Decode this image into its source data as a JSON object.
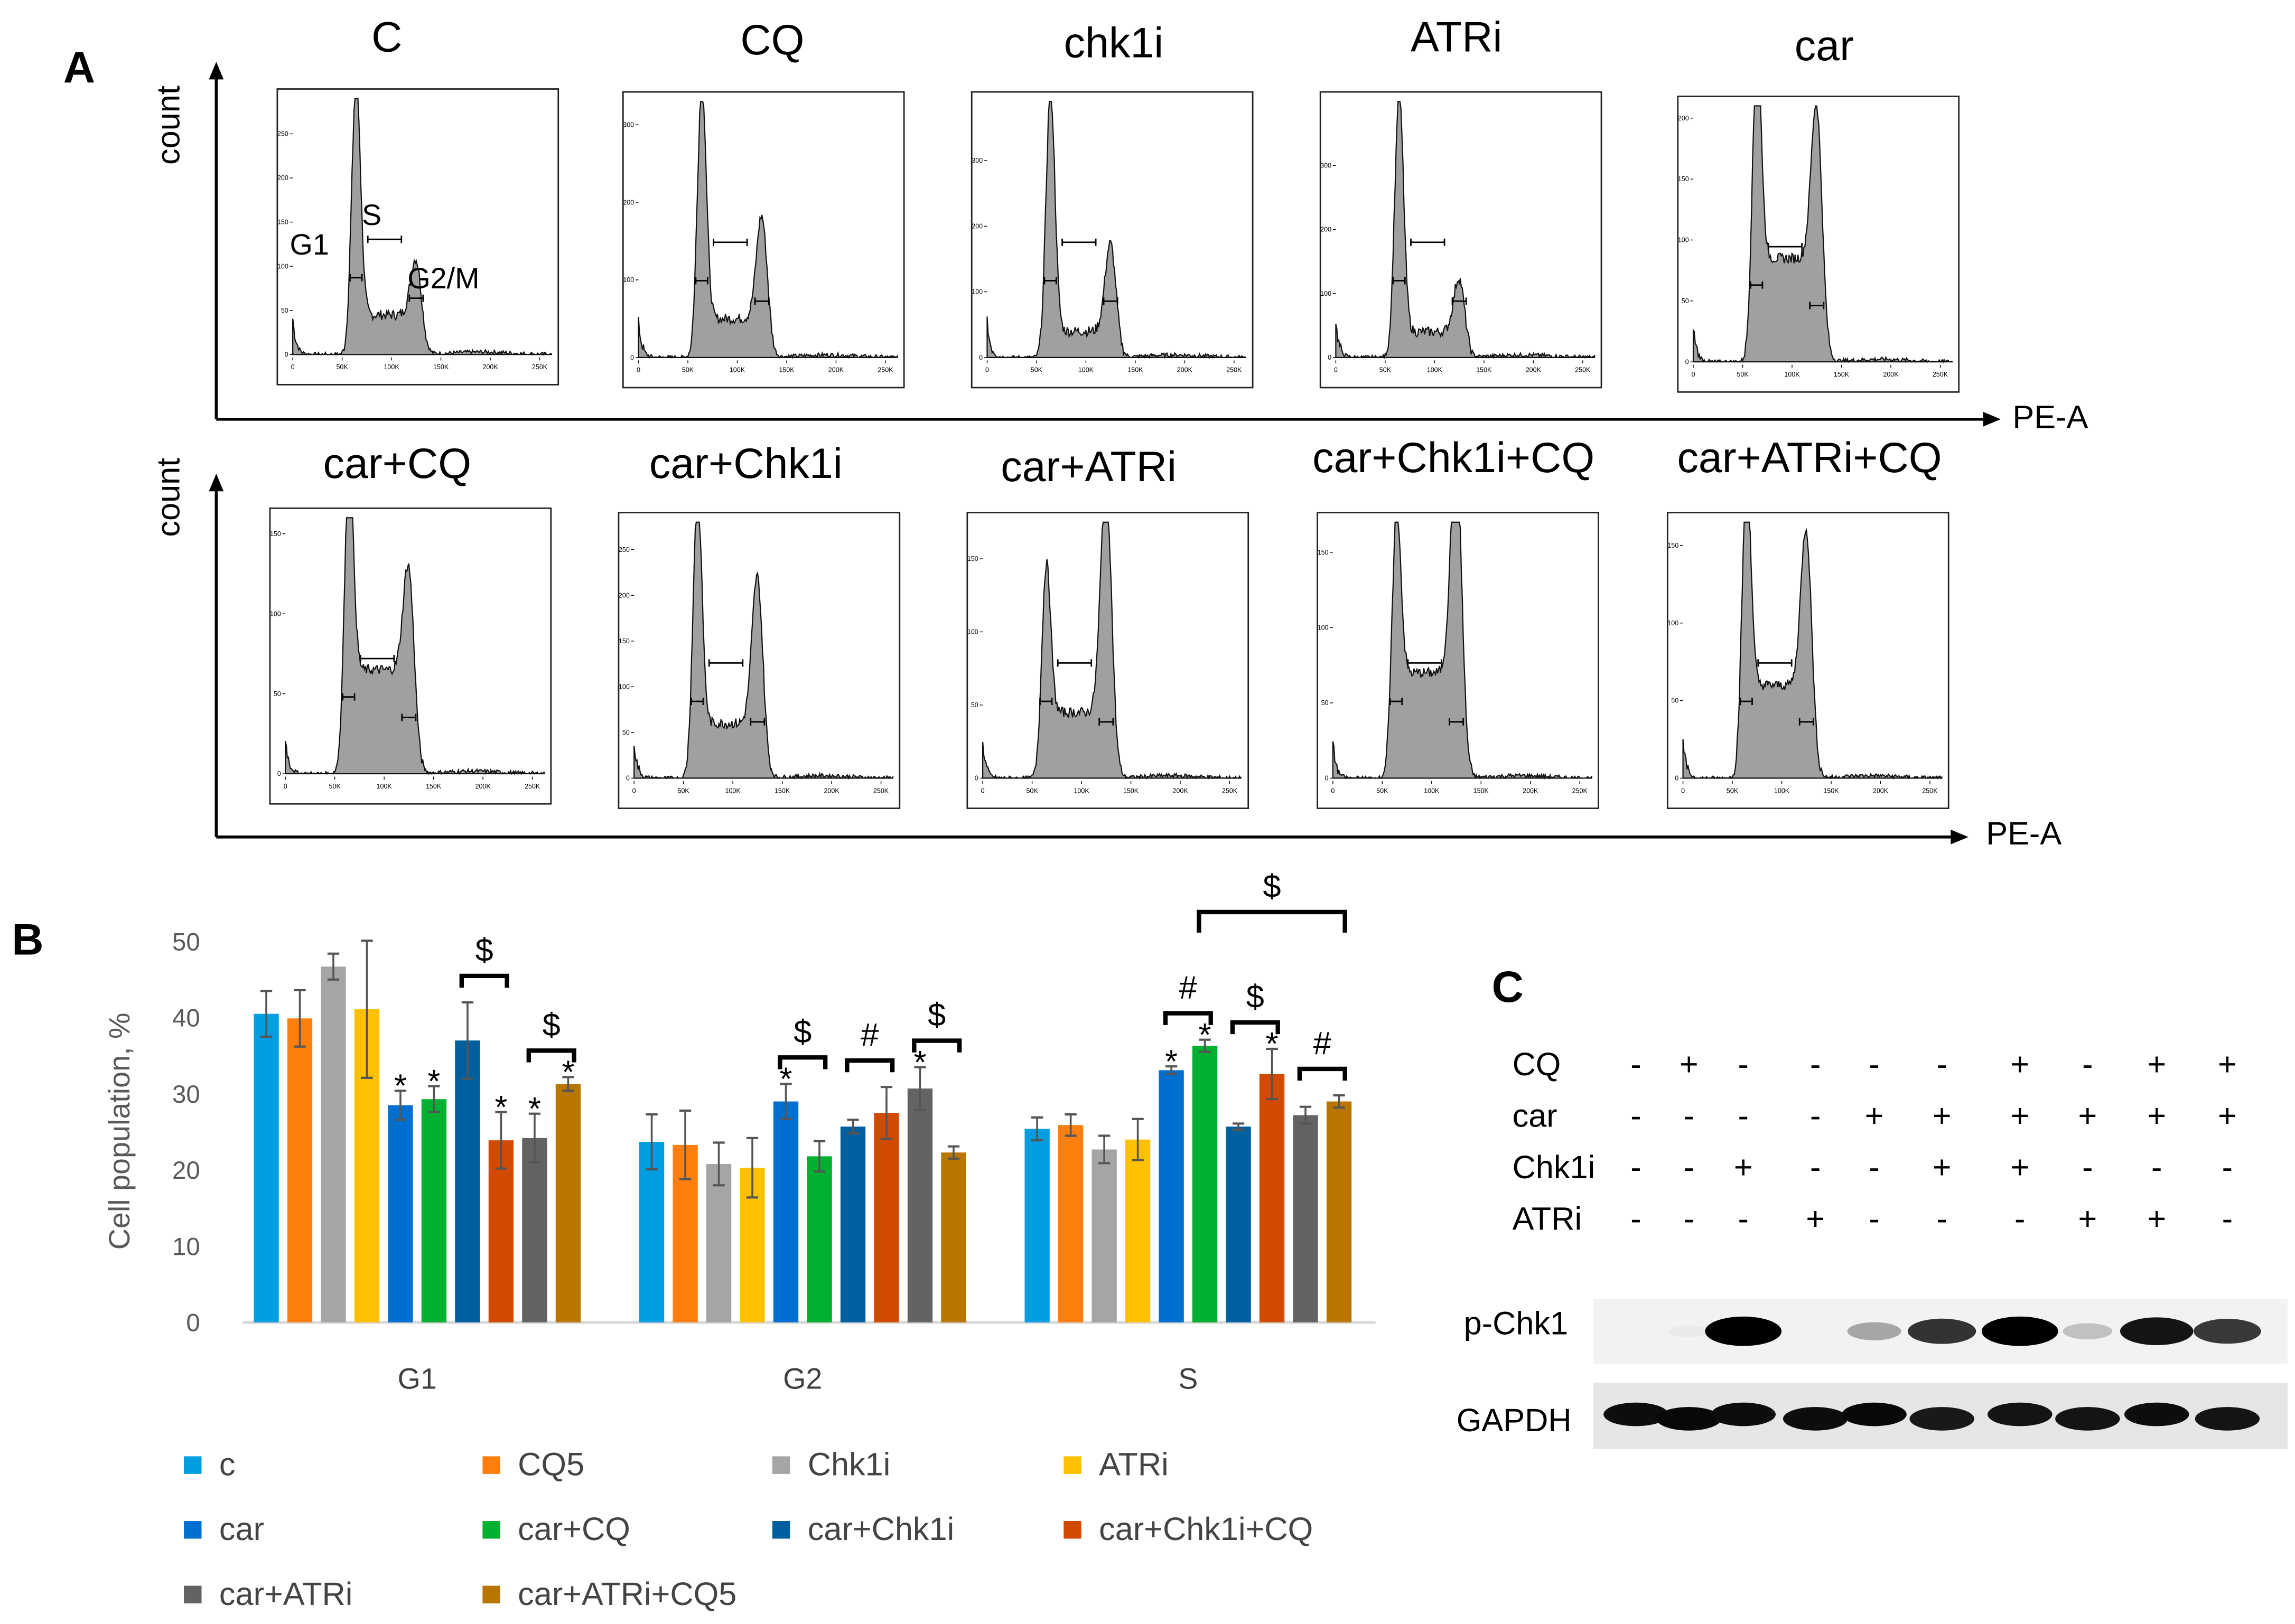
{
  "panel_a": {
    "label": "A",
    "count_label": "count",
    "x_axis_label": "PE-A",
    "x_ticks": [
      "0",
      "50K",
      "100K",
      "150K",
      "200K",
      "250K"
    ],
    "gate_labels": [
      "G1",
      "S",
      "G2/M"
    ],
    "histograms": [
      {
        "title": "C",
        "y_ticks": [
          0,
          50,
          100,
          150,
          200,
          250
        ],
        "ymax": 290,
        "g1_peak": 280,
        "g2_peak": 70,
        "s_level": 45
      },
      {
        "title": "CQ",
        "y_ticks": [
          0,
          100,
          200,
          300
        ],
        "ymax": 330,
        "g1_peak": 320,
        "g2_peak": 140,
        "s_level": 50
      },
      {
        "title": "chk1i",
        "y_ticks": [
          0,
          100,
          200,
          300
        ],
        "ymax": 390,
        "g1_peak": 380,
        "g2_peak": 140,
        "s_level": 40
      },
      {
        "title": "ATRi",
        "y_ticks": [
          0,
          100,
          200,
          300
        ],
        "ymax": 400,
        "g1_peak": 385,
        "g2_peak": 90,
        "s_level": 40
      },
      {
        "title": "car",
        "y_ticks": [
          0,
          50,
          100,
          150,
          200
        ],
        "ymax": 210,
        "g1_peak": 200,
        "g2_peak": 140,
        "s_level": 85
      },
      {
        "title": "car+CQ",
        "y_ticks": [
          0,
          50,
          100,
          150
        ],
        "ymax": 160,
        "g1_peak": 150,
        "g2_peak": 75,
        "s_level": 65
      },
      {
        "title": "car+Chk1i",
        "y_ticks": [
          0,
          50,
          100,
          150,
          200,
          250
        ],
        "ymax": 280,
        "g1_peak": 270,
        "g2_peak": 170,
        "s_level": 60
      },
      {
        "title": "car+ATRi",
        "y_ticks": [
          0,
          50,
          100,
          150
        ],
        "ymax": 175,
        "g1_peak": 115,
        "g2_peak": 165,
        "s_level": 45
      },
      {
        "title": "car+Chk1i+CQ",
        "y_ticks": [
          0,
          50,
          100,
          150
        ],
        "ymax": 170,
        "g1_peak": 130,
        "g2_peak": 160,
        "s_level": 70
      },
      {
        "title": "car+ATRi+CQ",
        "y_ticks": [
          0,
          50,
          100,
          150
        ],
        "ymax": 165,
        "g1_peak": 155,
        "g2_peak": 110,
        "s_level": 60
      }
    ]
  },
  "panel_b": {
    "label": "B",
    "legend": [
      "c",
      "CQ5",
      "Chk1i",
      "ATRi",
      "car",
      "car+CQ",
      "car+Chk1i",
      "car+Chk1i+CQ",
      "car+ATRi",
      "car+ATRi+CQ5"
    ]
  },
  "chart_data": {
    "type": "bar",
    "title": "",
    "xlabel": "",
    "ylabel": "Cell population, %",
    "ylim": [
      0,
      50
    ],
    "y_ticks": [
      0,
      10,
      20,
      30,
      40,
      50
    ],
    "categories": [
      "G1",
      "G2",
      "S"
    ],
    "colors": [
      "#009ee0",
      "#ff7f0e",
      "#a5a5a5",
      "#ffc000",
      "#0070d0",
      "#00b030",
      "#005f9e",
      "#d24a00",
      "#636363",
      "#b87600"
    ],
    "series": [
      {
        "name": "c",
        "values": [
          40.5,
          23.7,
          25.4
        ],
        "errors": [
          3.0,
          3.6,
          1.5
        ]
      },
      {
        "name": "CQ5",
        "values": [
          39.9,
          23.3,
          25.9
        ],
        "errors": [
          3.7,
          4.5,
          1.4
        ]
      },
      {
        "name": "Chk1i",
        "values": [
          46.7,
          20.8,
          22.7
        ],
        "errors": [
          1.7,
          2.8,
          1.8
        ]
      },
      {
        "name": "ATRi",
        "values": [
          41.1,
          20.3,
          24.0
        ],
        "errors": [
          9.0,
          3.9,
          2.7
        ]
      },
      {
        "name": "car",
        "values": [
          28.5,
          29.0,
          33.1
        ],
        "errors": [
          1.9,
          2.3,
          0.5
        ]
      },
      {
        "name": "car+CQ",
        "values": [
          29.3,
          21.8,
          36.3
        ],
        "errors": [
          1.7,
          2.0,
          0.8
        ]
      },
      {
        "name": "car+Chk1i",
        "values": [
          37.0,
          25.7,
          25.7
        ],
        "errors": [
          5.0,
          0.9,
          0.4
        ]
      },
      {
        "name": "car+Chk1i+CQ",
        "values": [
          23.9,
          27.5,
          32.6
        ],
        "errors": [
          3.7,
          3.4,
          3.3
        ]
      },
      {
        "name": "car+ATRi",
        "values": [
          24.2,
          30.7,
          27.2
        ],
        "errors": [
          3.2,
          2.8,
          1.1
        ]
      },
      {
        "name": "car+ATRi+CQ5",
        "values": [
          31.3,
          22.3,
          29.0
        ],
        "errors": [
          0.9,
          0.8,
          0.8
        ]
      }
    ],
    "stars": {
      "symbol": "*",
      "G1": [
        4,
        5,
        7,
        8,
        9
      ],
      "G2": [
        4,
        8
      ],
      "S": [
        4,
        5,
        7
      ]
    },
    "brackets": [
      {
        "category": "G1",
        "from": 6,
        "to": 7,
        "symbol": "$"
      },
      {
        "category": "G1",
        "from": 8,
        "to": 9,
        "symbol": "$"
      },
      {
        "category": "G2",
        "from": 4,
        "to": 5,
        "symbol": "$"
      },
      {
        "category": "G2",
        "from": 6,
        "to": 7,
        "symbol": "#"
      },
      {
        "category": "G2",
        "from": 8,
        "to": 9,
        "symbol": "$"
      },
      {
        "category": "S",
        "from": 4,
        "to": 5,
        "symbol": "#"
      },
      {
        "category": "S",
        "from": 6,
        "to": 7,
        "symbol": "$"
      },
      {
        "category": "S",
        "from": 8,
        "to": 9,
        "symbol": "#"
      },
      {
        "category": "S",
        "from": 5,
        "to": 9,
        "symbol": "$",
        "level": "high"
      }
    ]
  },
  "panel_c": {
    "label": "C",
    "conditions": [
      {
        "name": "CQ",
        "lanes": [
          "-",
          "+",
          "-",
          "-",
          "-",
          "-",
          "+",
          "-",
          "+",
          "+"
        ]
      },
      {
        "name": "car",
        "lanes": [
          "-",
          "-",
          "-",
          "-",
          "+",
          "+",
          "+",
          "+",
          "+",
          "+"
        ]
      },
      {
        "name": "Chk1i",
        "lanes": [
          "-",
          "-",
          "+",
          "-",
          "-",
          "+",
          "+",
          "-",
          "-",
          "-"
        ]
      },
      {
        "name": "ATRi",
        "lanes": [
          "-",
          "-",
          "-",
          "+",
          "-",
          "-",
          "-",
          "+",
          "+",
          "-"
        ]
      }
    ],
    "blots": [
      {
        "name": "p-Chk1",
        "intensity": [
          0,
          0.12,
          1,
          0.06,
          0.45,
          0.8,
          1,
          0.35,
          0.92,
          0.78
        ]
      },
      {
        "name": "GAPDH",
        "intensity": [
          0.95,
          0.97,
          0.95,
          0.95,
          0.97,
          0.9,
          0.92,
          0.92,
          0.95,
          0.92
        ]
      }
    ]
  }
}
